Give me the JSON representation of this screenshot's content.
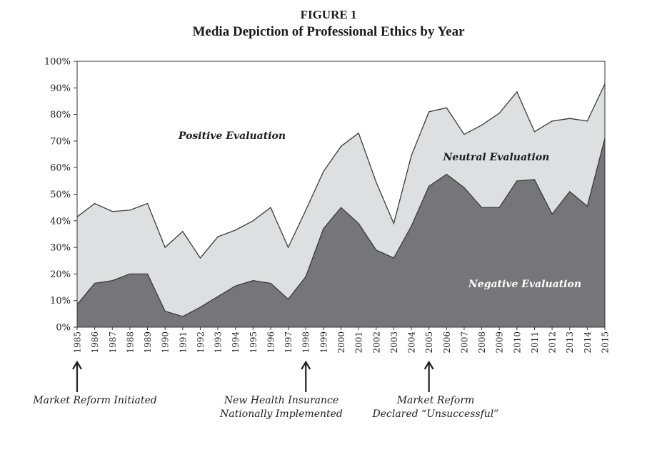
{
  "figure_label": "FIGURE 1",
  "chart_data": {
    "type": "area",
    "title": "Media Depiction of Professional Ethics by Year",
    "x": [
      1985,
      1986,
      1987,
      1988,
      1989,
      1990,
      1991,
      1992,
      1993,
      1994,
      1995,
      1996,
      1997,
      1998,
      1999,
      2000,
      2001,
      2002,
      2003,
      2004,
      2005,
      2006,
      2007,
      2008,
      2009,
      2010,
      2011,
      2012,
      2013,
      2014,
      2015
    ],
    "x_tick_labels": [
      "1985",
      "1986",
      "1987",
      "1988",
      "1989",
      "1990",
      "1991",
      "1992",
      "1993",
      "1994",
      "1995",
      "1996",
      "1997",
      "1998",
      "1999",
      "2000",
      "2001",
      "2002",
      "2003",
      "2004",
      "2005",
      "2006",
      "2007",
      "2008",
      "2009",
      "2010",
      "2011",
      "2012",
      "2013",
      "2014",
      "2015"
    ],
    "y_tick_labels": [
      "0%",
      "10%",
      "20%",
      "30%",
      "40%",
      "50%",
      "60%",
      "70%",
      "80%",
      "90%",
      "100%"
    ],
    "ylim": [
      0,
      100
    ],
    "series": [
      {
        "name": "Negative Evaluation",
        "values": [
          8.5,
          16.5,
          17.5,
          20,
          20,
          6,
          4,
          7.5,
          11.5,
          15.5,
          17.5,
          16.5,
          10.5,
          19,
          37,
          45,
          39,
          29,
          26,
          38,
          53,
          57.5,
          52.5,
          45,
          45,
          55,
          55.5,
          42.5,
          51,
          45.5,
          71
        ]
      },
      {
        "name": "Neutral Evaluation",
        "values": [
          33,
          30,
          26,
          24,
          26.5,
          24,
          32,
          18.5,
          22.5,
          21,
          22.5,
          28.5,
          19.5,
          25,
          21.5,
          23,
          34,
          25.5,
          13,
          26.5,
          28,
          25,
          20,
          31,
          35.5,
          33.5,
          18,
          35,
          27.5,
          32,
          20.5
        ]
      },
      {
        "name": "Positive Evaluation",
        "values": [
          58.5,
          53.5,
          56.5,
          56,
          53.5,
          70,
          64,
          74,
          66,
          63.5,
          60,
          55,
          70,
          56,
          41.5,
          32,
          27,
          45.5,
          61,
          35.5,
          19,
          17.5,
          27.5,
          24,
          19.5,
          11.5,
          26.5,
          22.5,
          21.5,
          22.5,
          8.5
        ]
      }
    ],
    "colors": {
      "negative": "#76767a",
      "neutral": "#dedfe1",
      "positive": "#ffffff",
      "line": "#3a3a3a"
    },
    "grid": false
  },
  "annotations": [
    {
      "year": 1985,
      "lines": [
        "Market Reform Initiated"
      ]
    },
    {
      "year": 1998,
      "lines": [
        "New Health Insurance",
        "Nationally Implemented"
      ]
    },
    {
      "year": 2005,
      "lines": [
        "Market Reform",
        "Declared “Unsuccessful”"
      ]
    }
  ]
}
